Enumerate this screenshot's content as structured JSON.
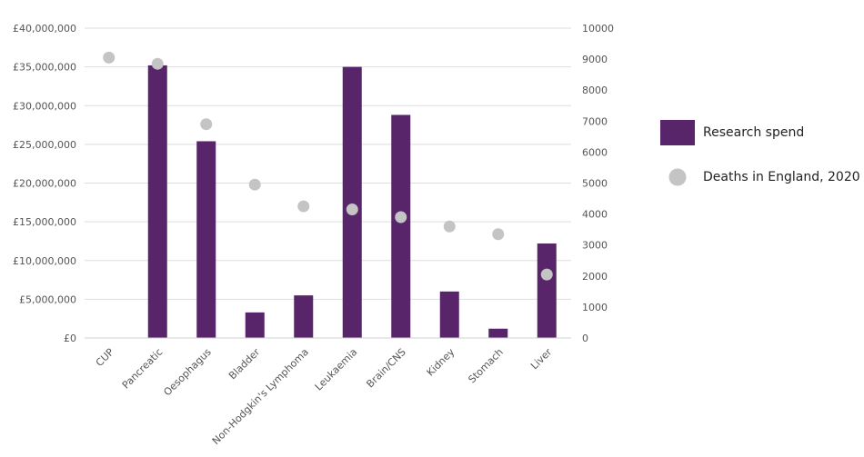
{
  "chart_data": {
    "type": "bar",
    "categories": [
      "CUP",
      "Pancreatic",
      "Oesophagus",
      "Bladder",
      "Non-Hodgkin's Lymphoma",
      "Leukaemia",
      "Brain/CNS",
      "Kidney",
      "Stomach",
      "Liver"
    ],
    "series": [
      {
        "name": "Research spend",
        "type": "bar",
        "axis": "left",
        "color": "#58246a",
        "values": [
          0,
          35200000,
          25400000,
          3300000,
          5500000,
          35000000,
          28800000,
          6000000,
          1200000,
          12200000
        ]
      },
      {
        "name": "Deaths in England, 2020",
        "type": "scatter",
        "axis": "right",
        "color": "#c4c4c4",
        "values": [
          9050,
          8850,
          6900,
          4950,
          4250,
          4150,
          3900,
          3600,
          3350,
          2050
        ]
      }
    ],
    "y_left": {
      "lim": [
        0,
        40000000
      ],
      "tick_labels": [
        "£0",
        "£5,000,000",
        "£10,000,000",
        "£15,000,000",
        "£20,000,000",
        "£25,000,000",
        "£30,000,000",
        "£35,000,000",
        "£40,000,000"
      ]
    },
    "y_right": {
      "lim": [
        0,
        10000
      ],
      "tick_labels": [
        "0",
        "1000",
        "2000",
        "3000",
        "4000",
        "5000",
        "6000",
        "7000",
        "8000",
        "9000",
        "10000"
      ]
    },
    "grid": true,
    "legend_position": "right"
  }
}
